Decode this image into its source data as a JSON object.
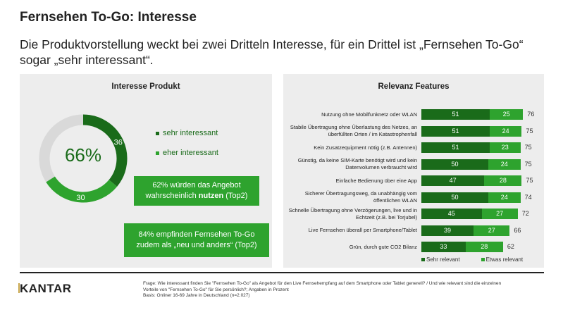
{
  "header": {
    "title": "Fernsehen To-Go: Interesse",
    "subtitle": "Die Produktvorstellung weckt bei zwei Dritteln Interesse, für ein Drittel ist „Fernsehen To-Go“ sogar „sehr interessant“."
  },
  "left": {
    "heading": "Interesse Produkt",
    "center_value": "66%",
    "legend": [
      "sehr interessant",
      "eher interessant"
    ],
    "callout1_pre": "62% würden das Angebot wahrscheinlich ",
    "callout1_bold": "nutzen",
    "callout1_post": " (Top2)",
    "callout2": "84% empfinden Fernsehen To-Go zudem als „neu und anders“ (Top2)"
  },
  "chart_data": [
    {
      "type": "pie",
      "title": "Interesse Produkt",
      "series": [
        {
          "name": "sehr interessant",
          "value": 36,
          "label": "36"
        },
        {
          "name": "eher interessant",
          "value": 30,
          "label": "30"
        },
        {
          "name": "rest",
          "value": 34
        }
      ],
      "colors": [
        "#1a6b1a",
        "#2ea32e",
        "#d9d9d9"
      ]
    },
    {
      "type": "bar",
      "title": "Relevanz Features",
      "categories": [
        "Nutzung ohne Mobilfunknetz oder WLAN",
        "Stabile Übertragung ohne Überlastung des Netzes, an überfüllten Orten / im Katastrophenfall",
        "Kein Zusatzequipment nötig (z.B. Antennen)",
        "Günstig, da keine SIM-Karte benötigt wird und kein Datenvolumen verbraucht wird",
        "Einfache Bedienung über eine App",
        "Sicherer Übertragungsweg, da unabhängig vom öffentlichen WLAN",
        "Schnelle Übertragung ohne Verzögerungen, live und in Echtzeit (z.B. bei Torjubel)",
        "Live Fernsehen überall per Smartphone/Tablet",
        "Grün, durch gute CO2 Bilanz"
      ],
      "series": [
        {
          "name": "Sehr relevant",
          "values": [
            51,
            51,
            51,
            50,
            47,
            50,
            45,
            39,
            33
          ],
          "color": "#1a6b1a"
        },
        {
          "name": "Etwas relevant",
          "values": [
            25,
            24,
            23,
            24,
            28,
            24,
            27,
            27,
            28
          ],
          "color": "#2ea32e"
        }
      ],
      "totals": [
        76,
        75,
        75,
        75,
        75,
        74,
        72,
        66,
        62
      ],
      "legend": "bottom"
    }
  ],
  "footer": {
    "logo": "KANTAR",
    "lines": [
      "Frage: Wie interessant finden Sie \"Fernsehen To-Go\" als Angebot für den Live Fernsehempfang auf dem Smartphone oder Tablet generell? / Und wie relevant sind die einzelnen Vorteile von \"Fernsehen To-Go\" für Sie persönlich?; Angaben in Prozent",
      "Basis: Onliner 16-69 Jahre in Deutschland (n=2.027)"
    ]
  }
}
